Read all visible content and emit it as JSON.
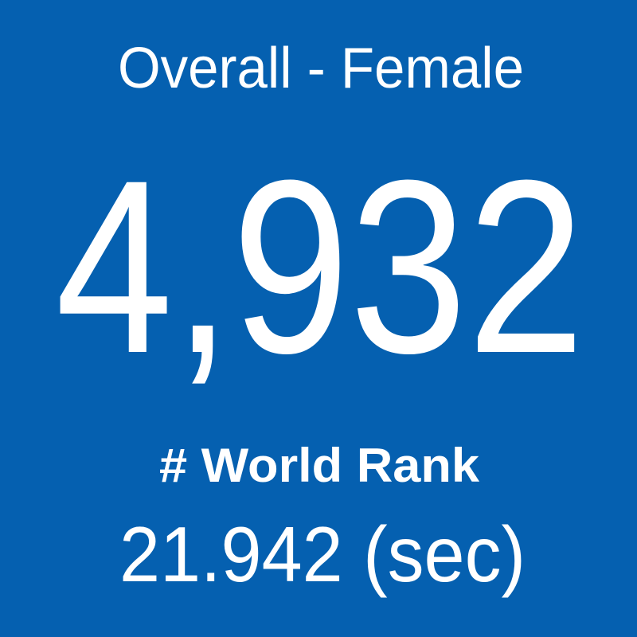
{
  "tile": {
    "title": "Overall - Female",
    "value": "4,932",
    "label": "# World Rank",
    "detail": "21.942 (sec)"
  }
}
